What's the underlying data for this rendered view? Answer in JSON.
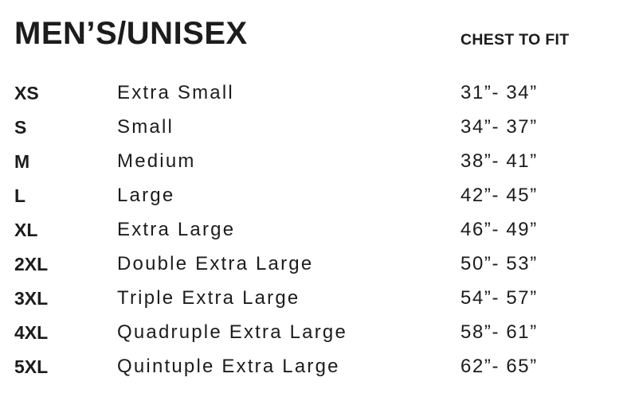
{
  "title": "MEN’S/UNISEX",
  "column_header": "CHEST TO FIT",
  "sizes": [
    {
      "code": "XS",
      "name": "Extra Small",
      "chest": "31”- 34”"
    },
    {
      "code": "S",
      "name": "Small",
      "chest": "34”- 37”"
    },
    {
      "code": "M",
      "name": "Medium",
      "chest": "38”- 41”"
    },
    {
      "code": "L",
      "name": "Large",
      "chest": "42”- 45”"
    },
    {
      "code": "XL",
      "name": "Extra Large",
      "chest": "46”- 49”"
    },
    {
      "code": "2XL",
      "name": "Double Extra Large",
      "chest": "50”- 53”"
    },
    {
      "code": "3XL",
      "name": "Triple Extra Large",
      "chest": "54”- 57”"
    },
    {
      "code": "4XL",
      "name": "Quadruple Extra Large",
      "chest": "58”- 61”"
    },
    {
      "code": "5XL",
      "name": "Quintuple Extra Large",
      "chest": "62”- 65”"
    }
  ]
}
